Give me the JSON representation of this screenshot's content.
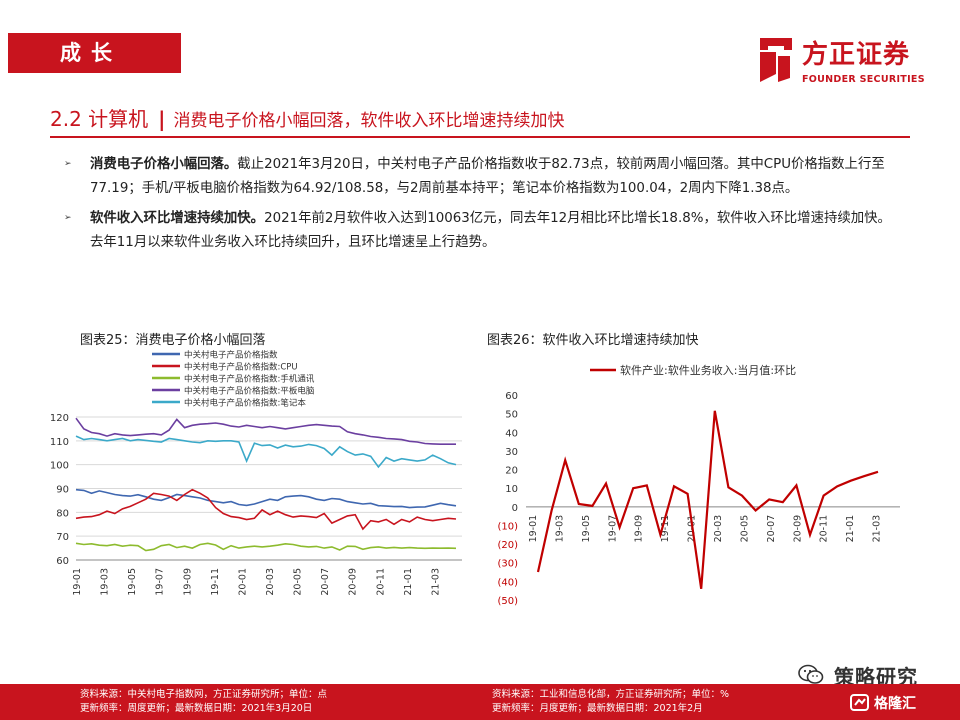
{
  "header": {
    "section_tag": "成长",
    "logo_cn": "方正证券",
    "logo_en": "FOUNDER SECURITIES"
  },
  "title": {
    "main": "2.2 计算机",
    "separator": "|",
    "sub": "消费电子价格小幅回落，软件收入环比增速持续加快"
  },
  "bullets": [
    {
      "marker": "➢",
      "bold": "消费电子价格小幅回落。",
      "text": "截止2021年3月20日，中关村电子产品价格指数收于82.73点，较前两周小幅回落。其中CPU价格指数上行至77.19；手机/平板电脑价格指数为64.92/108.58，与2周前基本持平；笔记本价格指数为100.04，2周内下降1.38点。"
    },
    {
      "marker": "➢",
      "bold": "软件收入环比增速持续加快。",
      "text": "2021年前2月软件收入达到10063亿元，同去年12月相比环比增长18.8%，软件收入环比增速持续加快。去年11月以来软件业务收入环比持续回升，且环比增速呈上行趋势。"
    }
  ],
  "chart_data": [
    {
      "type": "line",
      "caption": "图表25：消费电子价格小幅回落",
      "x_tick_labels": [
        "19-01",
        "19-03",
        "19-05",
        "19-07",
        "19-09",
        "19-11",
        "20-01",
        "20-03",
        "20-05",
        "20-07",
        "20-09",
        "20-11",
        "21-01",
        "21-03"
      ],
      "y_tick_labels": [
        "60",
        "70",
        "80",
        "90",
        "100",
        "110",
        "120"
      ],
      "ylim": [
        60,
        120
      ],
      "grid": true,
      "legend_position": "top-left",
      "series": [
        {
          "name": "中关村电子产品价格指数",
          "color": "#3f67b0",
          "values": [
            89.5,
            89.2,
            88.0,
            89.0,
            88.3,
            87.5,
            87.0,
            86.8,
            87.4,
            86.5,
            85.5,
            85.0,
            86.2,
            87.5,
            87.0,
            86.5,
            86.0,
            85.0,
            84.5,
            84.0,
            84.5,
            83.3,
            82.9,
            83.5,
            84.5,
            85.5,
            85.0,
            86.5,
            86.8,
            87.0,
            86.5,
            85.5,
            85.0,
            85.8,
            85.5,
            84.5,
            84.0,
            83.5,
            83.8,
            82.8,
            82.6,
            82.4,
            82.5,
            82.0,
            82.2,
            82.3,
            83.0,
            83.8,
            83.2,
            82.73
          ]
        },
        {
          "name": "中关村电子产品价格指数:CPU",
          "color": "#c8141e",
          "values": [
            77.5,
            78.0,
            78.2,
            79.0,
            80.5,
            79.5,
            81.5,
            82.5,
            84.0,
            85.5,
            88.0,
            87.5,
            86.8,
            85.0,
            87.5,
            89.5,
            88.0,
            86.0,
            82.0,
            79.5,
            78.2,
            77.8,
            77.0,
            77.5,
            81.0,
            79.0,
            80.5,
            79.0,
            78.0,
            78.5,
            78.2,
            77.8,
            79.5,
            75.5,
            77.0,
            78.5,
            79.0,
            73.0,
            76.5,
            76.0,
            77.0,
            75.0,
            77.0,
            76.0,
            78.0,
            77.0,
            76.5,
            77.0,
            77.5,
            77.19
          ]
        },
        {
          "name": "中关村电子产品价格指数:手机通讯",
          "color": "#8dbb2e",
          "values": [
            67.0,
            66.5,
            66.8,
            66.2,
            66.0,
            66.5,
            65.8,
            66.2,
            66.0,
            64.0,
            64.5,
            66.0,
            66.5,
            65.2,
            65.8,
            65.0,
            66.5,
            67.0,
            66.3,
            64.5,
            66.0,
            65.0,
            65.5,
            65.8,
            65.5,
            65.8,
            66.2,
            66.8,
            66.5,
            65.8,
            65.5,
            65.7,
            65.0,
            65.5,
            64.2,
            65.8,
            65.7,
            64.5,
            65.2,
            65.5,
            65.0,
            65.3,
            65.0,
            65.2,
            65.0,
            64.9,
            65.0,
            64.95,
            65.0,
            64.92
          ]
        },
        {
          "name": "中关村电子产品价格指数:平板电脑",
          "color": "#6b3fa0",
          "values": [
            119.5,
            115.0,
            113.5,
            113.0,
            112.0,
            113.0,
            112.5,
            112.2,
            112.5,
            112.8,
            113.0,
            112.5,
            114.5,
            119.0,
            115.5,
            116.5,
            117.0,
            117.2,
            117.5,
            117.0,
            116.2,
            115.8,
            116.5,
            116.0,
            115.5,
            116.0,
            115.5,
            115.0,
            115.5,
            116.0,
            116.5,
            116.8,
            116.5,
            116.2,
            116.0,
            113.8,
            113.0,
            112.5,
            111.8,
            111.5,
            111.0,
            110.8,
            110.5,
            109.8,
            109.5,
            108.9,
            108.7,
            108.6,
            108.6,
            108.58
          ]
        },
        {
          "name": "中关村电子产品价格指数:笔记本",
          "color": "#3ba9c9",
          "values": [
            112.0,
            110.5,
            111.0,
            110.5,
            110.0,
            110.5,
            111.0,
            110.0,
            110.5,
            110.2,
            109.8,
            109.5,
            111.0,
            110.5,
            110.0,
            109.5,
            109.2,
            110.0,
            109.8,
            110.0,
            110.0,
            109.5,
            101.5,
            109.0,
            108.0,
            108.3,
            107.0,
            108.2,
            107.5,
            107.8,
            108.5,
            108.0,
            106.8,
            104.0,
            107.5,
            105.5,
            104.0,
            104.5,
            103.5,
            99.0,
            103.0,
            101.5,
            102.5,
            102.0,
            101.5,
            102.0,
            104.0,
            102.5,
            100.8,
            100.04
          ]
        }
      ]
    },
    {
      "type": "line",
      "caption": "图表26：软件收入环比增速持续加快",
      "x": [
        "19-01",
        "19-02",
        "19-03",
        "19-04",
        "19-05",
        "19-06",
        "19-07",
        "19-08",
        "19-09",
        "19-10",
        "19-11",
        "19-12",
        "20-01",
        "20-02",
        "20-03",
        "20-04",
        "20-05",
        "20-06",
        "20-07",
        "20-08",
        "20-09",
        "20-10",
        "20-11",
        "20-12",
        "21-01",
        "21-02"
      ],
      "x_tick_labels": [
        "19-01",
        "19-03",
        "19-05",
        "19-07",
        "19-09",
        "19-11",
        "20-01",
        "20-03",
        "20-05",
        "20-07",
        "20-09",
        "20-11",
        "21-01",
        "21-03"
      ],
      "y_tick_labels": [
        "60",
        "50",
        "40",
        "30",
        "20",
        "10",
        "0",
        "(10)",
        "(20)",
        "(30)",
        "(40)",
        "(50)"
      ],
      "ylim": [
        -50,
        60
      ],
      "grid": false,
      "legend_position": "top",
      "series": [
        {
          "name": "软件产业:软件业务收入:当月值:环比",
          "color": "#c00000",
          "values": [
            -35,
            -2,
            25,
            1.5,
            0.5,
            12.5,
            -11,
            10,
            11.5,
            -15,
            11,
            7,
            -44,
            51.5,
            10.5,
            6,
            -2,
            4,
            2.5,
            11.5,
            -15,
            6,
            11,
            14,
            16.5,
            18.8
          ]
        }
      ]
    }
  ],
  "footer": {
    "left_line1": "资料来源：中关村电子指数网，方正证券研究所；单位：点",
    "left_line2": "更新频率：周度更新；最新数据日期：2021年3月20日",
    "right_line1": "资料来源：工业和信息化部，方正证券研究所；单位：%",
    "right_line2": "更新频率：月度更新；最新数据日期：2021年2月"
  },
  "watermark": {
    "wechat": "策略研究",
    "gelonghui": "格隆汇"
  },
  "colors": {
    "brand_red": "#c8141e"
  }
}
